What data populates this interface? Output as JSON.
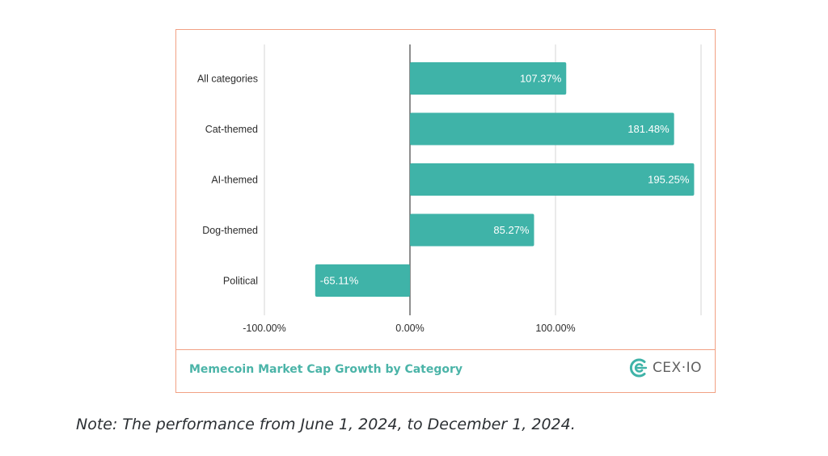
{
  "chart_data": {
    "type": "bar",
    "orientation": "horizontal",
    "categories": [
      "All categories",
      "Cat-themed",
      "AI-themed",
      "Dog-themed",
      "Political"
    ],
    "values": [
      107.37,
      181.48,
      195.25,
      85.27,
      -65.11
    ],
    "value_labels": [
      "107.37%",
      "181.48%",
      "195.25%",
      "85.27%",
      "-65.11%"
    ],
    "xticks": [
      -100,
      0,
      100
    ],
    "xtick_labels": [
      "-100.00%",
      "0.00%",
      "100.00%"
    ],
    "xlim": [
      -100,
      200
    ],
    "grid": true,
    "bar_color": "#3fb3a8",
    "title": "Memecoin Market Cap Growth by Category"
  },
  "footer": {
    "title": "Memecoin Market Cap Growth by Category",
    "logo_text": "CEX·IO",
    "logo_icon": "cex-io-logo-icon",
    "accent_color": "#4bb4a8",
    "border_color": "#f2a184"
  },
  "note": "Note: The performance from June 1, 2024, to December 1, 2024."
}
